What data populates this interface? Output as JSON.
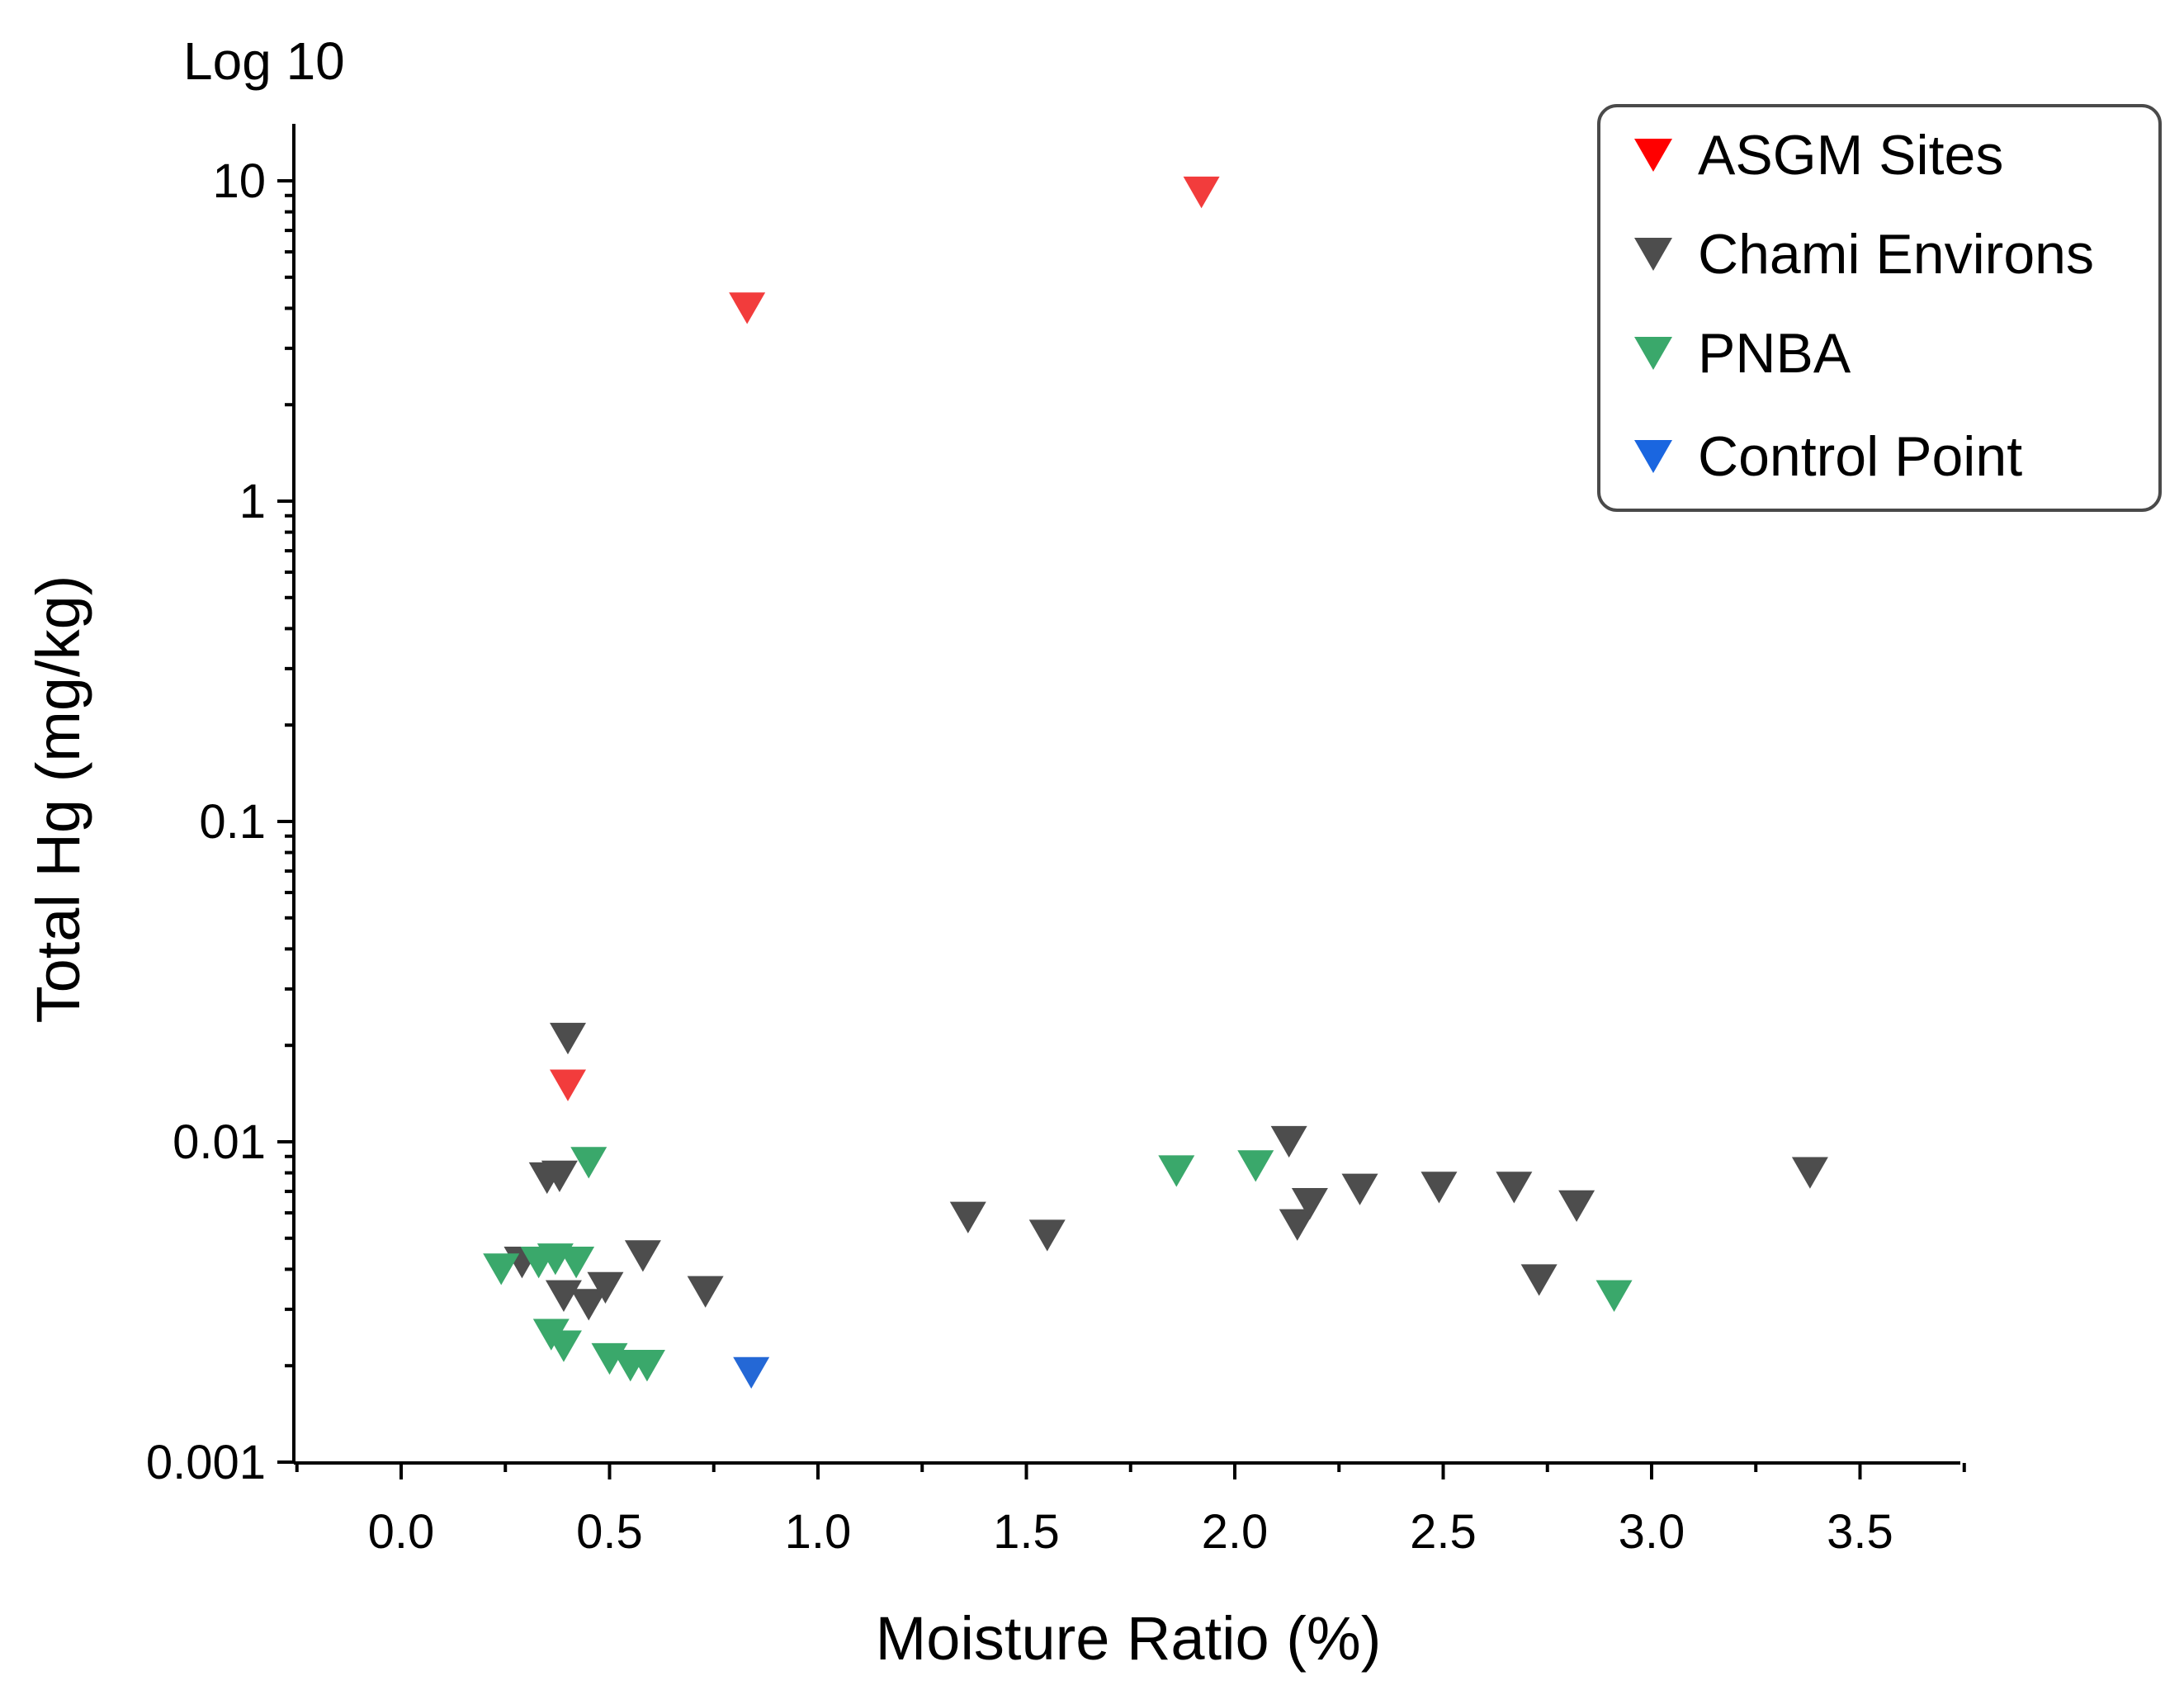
{
  "chart_data": {
    "type": "scatter",
    "title": "",
    "xlabel": "Moisture Ratio (%)",
    "ylabel": "Total Hg (mg/kg)",
    "yscale_note": "Log 10",
    "xlim": [
      -0.25,
      3.75
    ],
    "ylim": [
      0.001,
      15
    ],
    "xticks": [
      "0.0",
      "0.5",
      "1.0",
      "1.5",
      "2.0",
      "2.5",
      "3.0",
      "3.5"
    ],
    "xtick_values": [
      0,
      0.5,
      1,
      1.5,
      2,
      2.5,
      3,
      3.5
    ],
    "yticks": [
      "10",
      "1",
      "0.1",
      "0.01",
      "0.001"
    ],
    "ytick_values": [
      10,
      1,
      0.1,
      0.01,
      0.001
    ],
    "legend_position": "top-right",
    "marker": "down-triangle",
    "series": [
      {
        "name": "ASGM Sites",
        "color": "#f23c3c",
        "legend_color": "#ff0000",
        "points": [
          [
            0.4,
            0.015
          ],
          [
            0.83,
            4.0
          ],
          [
            1.92,
            9.2
          ]
        ]
      },
      {
        "name": "Chami Environs",
        "color": "#4d4d4d",
        "legend_color": "#4d4d4d",
        "points": [
          [
            0.29,
            0.0042
          ],
          [
            0.35,
            0.0077
          ],
          [
            0.38,
            0.0078
          ],
          [
            0.39,
            0.0033
          ],
          [
            0.4,
            0.021
          ],
          [
            0.45,
            0.0031
          ],
          [
            0.49,
            0.0035
          ],
          [
            0.58,
            0.0044
          ],
          [
            0.73,
            0.0034
          ],
          [
            1.36,
            0.0058
          ],
          [
            1.55,
            0.0051
          ],
          [
            2.13,
            0.01
          ],
          [
            2.15,
            0.0055
          ],
          [
            2.18,
            0.0064
          ],
          [
            2.3,
            0.0071
          ],
          [
            2.49,
            0.0072
          ],
          [
            2.67,
            0.0072
          ],
          [
            2.73,
            0.0037
          ],
          [
            2.82,
            0.0063
          ],
          [
            3.38,
            0.008
          ]
        ]
      },
      {
        "name": "PNBA",
        "color": "#3aa86b",
        "legend_color": "#3aa86b",
        "points": [
          [
            0.24,
            0.004
          ],
          [
            0.33,
            0.0042
          ],
          [
            0.36,
            0.0025
          ],
          [
            0.37,
            0.0043
          ],
          [
            0.39,
            0.0023
          ],
          [
            0.42,
            0.0042
          ],
          [
            0.45,
            0.0086
          ],
          [
            0.5,
            0.0021
          ],
          [
            0.55,
            0.002
          ],
          [
            0.59,
            0.002
          ],
          [
            1.86,
            0.0081
          ],
          [
            2.05,
            0.0084
          ],
          [
            2.91,
            0.0033
          ]
        ]
      },
      {
        "name": "Control Point",
        "color": "#2468d6",
        "legend_color": "#1a66e0",
        "points": [
          [
            0.84,
            0.0019
          ]
        ]
      }
    ]
  }
}
